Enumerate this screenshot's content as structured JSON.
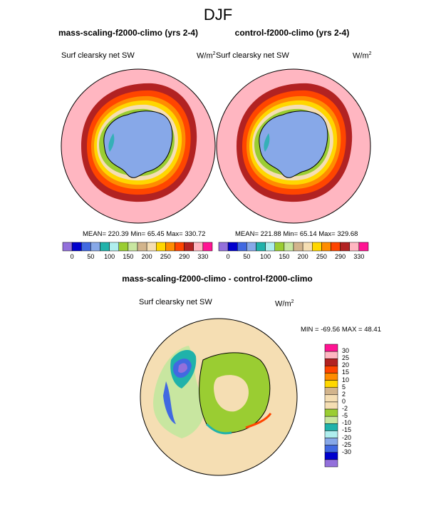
{
  "figure": {
    "title": "DJF"
  },
  "panels": [
    {
      "title": "mass-scaling-f2000-climo (yrs 2-4)",
      "variable": "Surf clearsky net SW",
      "units_base": "W/m",
      "units_exp": "2",
      "stats": "MEAN= 220.39  Min=  65.45  Max= 330.72"
    },
    {
      "title": "control-f2000-climo (yrs 2-4)",
      "variable": "Surf clearsky net SW",
      "units_base": "W/m",
      "units_exp": "2",
      "stats": "MEAN= 221.88  Min=  65.14  Max= 329.68"
    },
    {
      "title": "mass-scaling-f2000-climo - control-f2000-climo",
      "variable": "Surf clearsky net SW",
      "units_base": "W/m",
      "units_exp": "2",
      "stats": "MIN = -69.56 MAX =  48.41"
    }
  ],
  "colorbar_abs": {
    "colors": [
      "#9370DB",
      "#0000CD",
      "#4169E1",
      "#87A8E8",
      "#20B2AA",
      "#AFEEEE",
      "#9ACD32",
      "#C8E6A0",
      "#D2B48C",
      "#F5DEB3",
      "#FFD700",
      "#FF8C00",
      "#FF4500",
      "#B22222",
      "#FFB6C1",
      "#FF1493"
    ],
    "labels": [
      "0",
      "50",
      "100",
      "150",
      "200",
      "250",
      "290",
      "330"
    ]
  },
  "colorbar_diff": {
    "colors": [
      "#FF1493",
      "#FFB6C1",
      "#B22222",
      "#FF4500",
      "#FF8C00",
      "#FFD700",
      "#D2B48C",
      "#F5DEB3",
      "#F5DEB3",
      "#9ACD32",
      "#C8E6A0",
      "#20B2AA",
      "#AFEEEE",
      "#87A8E8",
      "#4169E1",
      "#0000CD",
      "#9370DB"
    ],
    "labels": [
      "30",
      "25",
      "20",
      "15",
      "10",
      "5",
      "2",
      "0",
      "-2",
      "-5",
      "-10",
      "-15",
      "-20",
      "-25",
      "-30"
    ]
  },
  "map_colors": {
    "ocean_outer": "#FFB6C1",
    "ring_dark_red": "#B22222",
    "ring_red": "#FF4500",
    "ring_orange": "#FF8C00",
    "ring_yellow": "#FFD700",
    "ring_wheat": "#F5DEB3",
    "ring_tan": "#D2B48C",
    "ring_green": "#9ACD32",
    "ice": "#87A8E8",
    "diff_background": "#F5DEB3",
    "diff_green": "#9ACD32",
    "diff_lightgreen": "#C8E6A0",
    "diff_teal": "#20B2AA",
    "diff_blue": "#4169E1",
    "diff_purple": "#9370DB"
  }
}
